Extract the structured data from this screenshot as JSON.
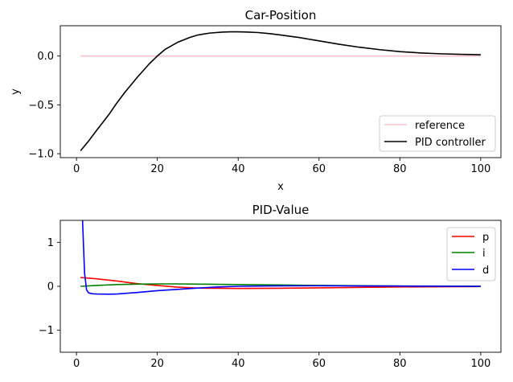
{
  "chart_data": [
    {
      "type": "line",
      "title": "Car-Position",
      "xlabel": "x",
      "ylabel": "y",
      "xlim": [
        -4,
        105
      ],
      "ylim": [
        -1.04,
        0.31
      ],
      "xticks": [
        0,
        20,
        40,
        60,
        80,
        100
      ],
      "xtick_labels": [
        "0",
        "20",
        "40",
        "60",
        "80",
        "100"
      ],
      "yticks": [
        -1.0,
        -0.5,
        0.0
      ],
      "ytick_labels": [
        "−1.0",
        "−0.5",
        "0.0"
      ],
      "grid": false,
      "legend_position": "lower-right",
      "series": [
        {
          "name": "reference",
          "color": "#ffc0cb",
          "x": [
            1,
            100
          ],
          "y": [
            0,
            0
          ]
        },
        {
          "name": "PID controller",
          "color": "#000000",
          "x": [
            1,
            3,
            5,
            8,
            10,
            12,
            15,
            18,
            20,
            22,
            25,
            28,
            30,
            33,
            36,
            38,
            40,
            42,
            45,
            48,
            50,
            55,
            60,
            65,
            70,
            75,
            80,
            85,
            90,
            95,
            100
          ],
          "y": [
            -0.97,
            -0.87,
            -0.76,
            -0.6,
            -0.48,
            -0.37,
            -0.22,
            -0.08,
            0.0,
            0.07,
            0.14,
            0.19,
            0.215,
            0.235,
            0.245,
            0.248,
            0.248,
            0.246,
            0.24,
            0.228,
            0.218,
            0.19,
            0.155,
            0.12,
            0.09,
            0.065,
            0.045,
            0.032,
            0.023,
            0.017,
            0.013
          ]
        }
      ]
    },
    {
      "type": "line",
      "title": "PID-Value",
      "xlabel": "",
      "ylabel": "",
      "xlim": [
        -4,
        105
      ],
      "ylim": [
        -1.5,
        1.5
      ],
      "xticks": [
        0,
        20,
        40,
        60,
        80,
        100
      ],
      "xtick_labels": [
        "0",
        "20",
        "40",
        "60",
        "80",
        "100"
      ],
      "yticks": [
        -1,
        0,
        1
      ],
      "ytick_labels": [
        "−1",
        "0",
        "1"
      ],
      "grid": false,
      "legend_position": "upper-right",
      "series": [
        {
          "name": "p",
          "color": "#ff0000",
          "x": [
            1,
            5,
            10,
            15,
            20,
            25,
            30,
            35,
            40,
            50,
            60,
            70,
            80,
            90,
            100
          ],
          "y": [
            0.2,
            0.17,
            0.12,
            0.06,
            0.02,
            -0.02,
            -0.04,
            -0.045,
            -0.05,
            -0.045,
            -0.035,
            -0.025,
            -0.015,
            -0.01,
            -0.005
          ]
        },
        {
          "name": "i",
          "color": "#008000",
          "x": [
            1,
            5,
            10,
            15,
            20,
            25,
            30,
            35,
            40,
            50,
            60,
            70,
            80,
            90,
            100
          ],
          "y": [
            0.0,
            0.02,
            0.04,
            0.05,
            0.055,
            0.055,
            0.05,
            0.045,
            0.04,
            0.03,
            0.02,
            0.012,
            0.007,
            0.004,
            0.002
          ]
        },
        {
          "name": "d",
          "color": "#0000ff",
          "x": [
            1,
            1.5,
            2,
            2.5,
            3,
            4,
            5,
            8,
            10,
            15,
            20,
            25,
            30,
            35,
            40,
            50,
            60,
            70,
            80,
            90,
            100
          ],
          "y": [
            3.0,
            1.5,
            0.3,
            -0.08,
            -0.15,
            -0.17,
            -0.175,
            -0.18,
            -0.175,
            -0.14,
            -0.1,
            -0.07,
            -0.04,
            -0.015,
            0.0,
            0.01,
            0.012,
            0.008,
            0.005,
            0.002,
            0.0
          ]
        }
      ]
    }
  ]
}
